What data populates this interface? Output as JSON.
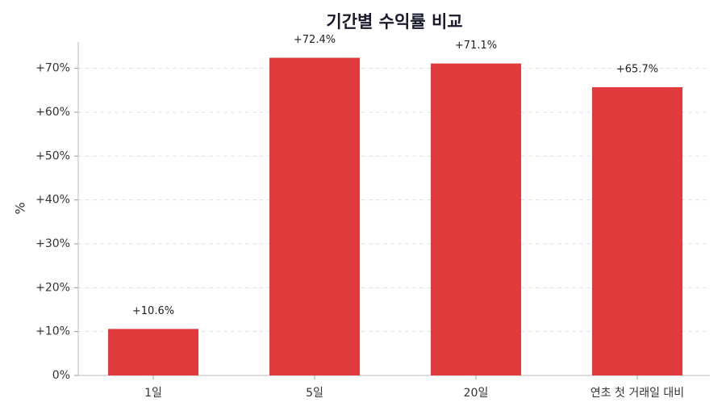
{
  "chart_data": {
    "type": "bar",
    "title": "기간별 수익률 비교",
    "y_label": "%",
    "categories": [
      "1일",
      "5일",
      "20일",
      "연초 첫 거래일 대비"
    ],
    "values": [
      10.6,
      72.4,
      71.1,
      65.7
    ],
    "value_labels": [
      "+10.6%",
      "+72.4%",
      "+71.1%",
      "+65.7%"
    ],
    "color": "#e03a3c",
    "ylim": [
      0,
      76
    ],
    "yticks": [
      {
        "value": 0,
        "label": "0%"
      },
      {
        "value": 10,
        "label": "+10%"
      },
      {
        "value": 20,
        "label": "+20%"
      },
      {
        "value": 30,
        "label": "+30%"
      },
      {
        "value": 40,
        "label": "+40%"
      },
      {
        "value": 50,
        "label": "+50%"
      },
      {
        "value": 60,
        "label": "+60%"
      },
      {
        "value": 70,
        "label": "+70%"
      }
    ],
    "grid": true
  }
}
